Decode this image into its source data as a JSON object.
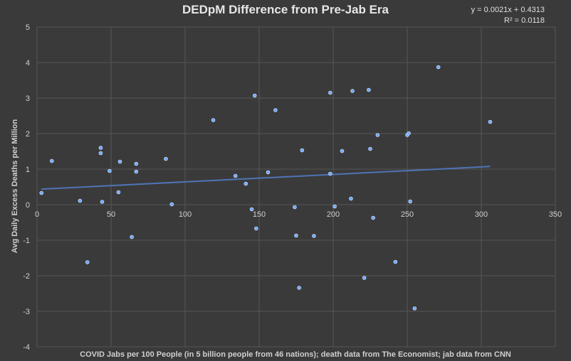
{
  "chart_data": {
    "type": "scatter",
    "title": "DEDpM Difference from Pre-Jab Era",
    "xlabel": "COVID Jabs per 100 People (in 5 billion people from 46 nations); death data from The Economist; jab data from CNN",
    "ylabel": "Avg Daily Excess Deaths per Million",
    "xlim": [
      0,
      350
    ],
    "ylim": [
      -4,
      5
    ],
    "xticks": [
      "0",
      "50",
      "100",
      "150",
      "200",
      "250",
      "300",
      "350"
    ],
    "yticks": [
      "-4",
      "-3",
      "-2",
      "-1",
      "0",
      "1",
      "2",
      "3",
      "4",
      "5"
    ],
    "grid": true,
    "trendline": {
      "slope": 0.0021,
      "intercept": 0.4313,
      "x_range": [
        3,
        306
      ],
      "equation": "y = 0.0021x + 0.4313",
      "r_squared": "R² = 0.0118"
    },
    "points": [
      {
        "x": 3,
        "y": 0.33
      },
      {
        "x": 10,
        "y": 1.23
      },
      {
        "x": 29,
        "y": 0.11
      },
      {
        "x": 34,
        "y": -1.62
      },
      {
        "x": 43,
        "y": 1.6
      },
      {
        "x": 43,
        "y": 1.45
      },
      {
        "x": 44,
        "y": 0.08
      },
      {
        "x": 49,
        "y": 0.95
      },
      {
        "x": 55,
        "y": 0.35
      },
      {
        "x": 56,
        "y": 1.21
      },
      {
        "x": 64,
        "y": -0.91
      },
      {
        "x": 67,
        "y": 1.15
      },
      {
        "x": 67,
        "y": 0.93
      },
      {
        "x": 87,
        "y": 1.29
      },
      {
        "x": 91,
        "y": 0.01
      },
      {
        "x": 119,
        "y": 2.38
      },
      {
        "x": 134,
        "y": 0.81
      },
      {
        "x": 141,
        "y": 0.59
      },
      {
        "x": 145,
        "y": -0.13
      },
      {
        "x": 147,
        "y": 3.07
      },
      {
        "x": 148,
        "y": -0.67
      },
      {
        "x": 156,
        "y": 0.91
      },
      {
        "x": 161,
        "y": 2.66
      },
      {
        "x": 174,
        "y": -0.07
      },
      {
        "x": 175,
        "y": -0.87
      },
      {
        "x": 177,
        "y": -2.34
      },
      {
        "x": 179,
        "y": 1.53
      },
      {
        "x": 187,
        "y": -0.88
      },
      {
        "x": 198,
        "y": 3.15
      },
      {
        "x": 198,
        "y": 0.87
      },
      {
        "x": 201,
        "y": -0.05
      },
      {
        "x": 206,
        "y": 1.51
      },
      {
        "x": 212,
        "y": 0.17
      },
      {
        "x": 213,
        "y": 3.2
      },
      {
        "x": 221,
        "y": -2.06
      },
      {
        "x": 224,
        "y": 3.23
      },
      {
        "x": 225,
        "y": 1.57
      },
      {
        "x": 227,
        "y": -0.37
      },
      {
        "x": 230,
        "y": 1.96
      },
      {
        "x": 242,
        "y": -1.61
      },
      {
        "x": 250,
        "y": 1.96
      },
      {
        "x": 251,
        "y": 2.01
      },
      {
        "x": 252,
        "y": 0.09
      },
      {
        "x": 255,
        "y": -2.92
      },
      {
        "x": 271,
        "y": 3.87
      },
      {
        "x": 306,
        "y": 2.33
      }
    ]
  }
}
